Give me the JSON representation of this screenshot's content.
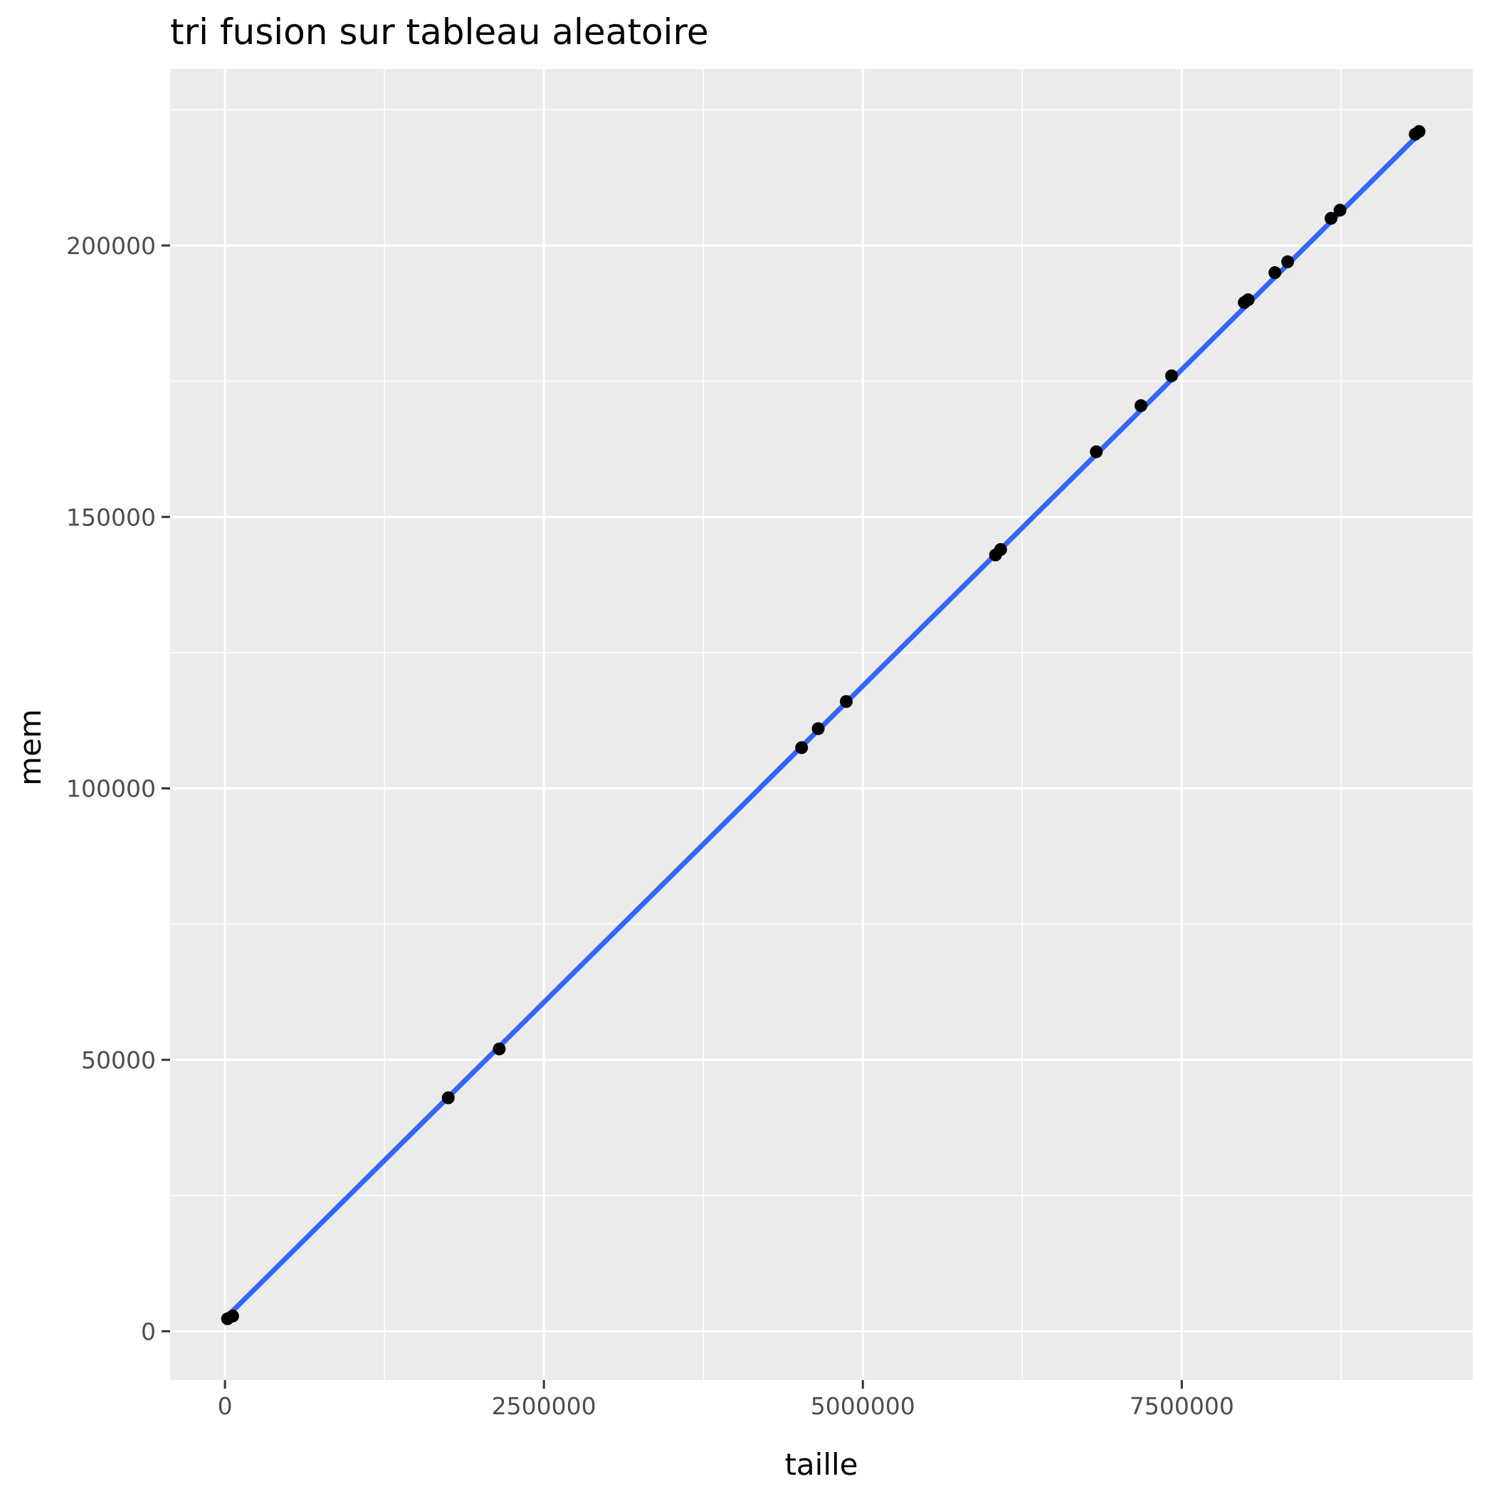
{
  "chart_data": {
    "type": "scatter",
    "title": "tri fusion sur tableau aleatoire",
    "xlabel": "taille",
    "ylabel": "mem",
    "xlim": [
      -430000,
      9780000
    ],
    "ylim": [
      -9000,
      232500
    ],
    "x_ticks": [
      0,
      2500000,
      5000000,
      7500000
    ],
    "x_tick_labels": [
      "0",
      "2500000",
      "5000000",
      "7500000"
    ],
    "x_minor_ticks": [
      1250000,
      3750000,
      6250000,
      8750000
    ],
    "y_ticks": [
      0,
      50000,
      100000,
      150000,
      200000
    ],
    "y_tick_labels": [
      "0",
      "50000",
      "100000",
      "150000",
      "200000"
    ],
    "y_minor_ticks": [
      25000,
      75000,
      125000,
      175000,
      225000
    ],
    "grid": true,
    "points": [
      {
        "x": 20000,
        "y": 2300
      },
      {
        "x": 60000,
        "y": 2800
      },
      {
        "x": 1750000,
        "y": 43000
      },
      {
        "x": 2150000,
        "y": 52000
      },
      {
        "x": 4520000,
        "y": 107500
      },
      {
        "x": 4650000,
        "y": 111000
      },
      {
        "x": 4870000,
        "y": 116000
      },
      {
        "x": 6040000,
        "y": 143000
      },
      {
        "x": 6080000,
        "y": 144000
      },
      {
        "x": 6830000,
        "y": 162000
      },
      {
        "x": 7180000,
        "y": 170500
      },
      {
        "x": 7420000,
        "y": 176000
      },
      {
        "x": 7990000,
        "y": 189500
      },
      {
        "x": 8020000,
        "y": 190000
      },
      {
        "x": 8230000,
        "y": 195000
      },
      {
        "x": 8330000,
        "y": 197000
      },
      {
        "x": 8670000,
        "y": 205000
      },
      {
        "x": 8740000,
        "y": 206500
      },
      {
        "x": 9330000,
        "y": 220500
      },
      {
        "x": 9360000,
        "y": 221000
      }
    ],
    "fit_line": {
      "x": [
        20000,
        9360000
      ],
      "y": [
        2800,
        220500
      ]
    },
    "colors": {
      "panel": "#ebebeb",
      "grid": "#ffffff",
      "points": "#000000",
      "fit_line": "#3366ff",
      "tick_label": "#4d4d4d",
      "tick_mark": "#333333"
    }
  }
}
